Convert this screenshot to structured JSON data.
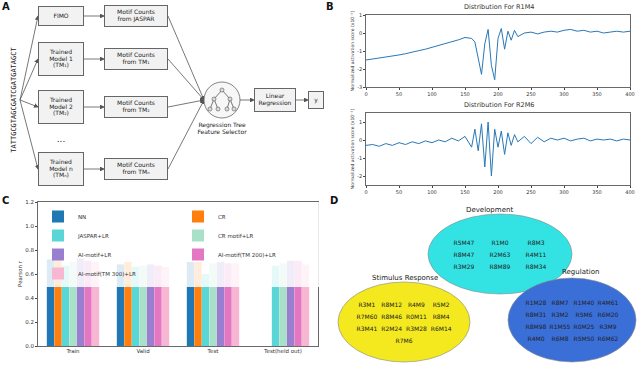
{
  "panel_labels": [
    "A",
    "B",
    "C",
    "D"
  ],
  "pipeline": {
    "sequence": "TATTGCGTAGCGATCGATGATAGCT",
    "inputs": [
      {
        "model": [
          "FIMO"
        ],
        "counts": [
          "Motif Counts",
          "from JASPAR"
        ]
      },
      {
        "model": [
          "Trained",
          "Model 1",
          "(TM₁)"
        ],
        "counts": [
          "Motif Counts",
          "from TM₁"
        ]
      },
      {
        "model": [
          "Trained",
          "Model 2",
          "(TM₂)"
        ],
        "counts": [
          "Motif Counts",
          "from TM₂"
        ]
      },
      {
        "model": [
          "Trained",
          "Model n",
          "(TMₙ)"
        ],
        "counts": [
          "Motif Counts",
          "from TMₙ"
        ]
      }
    ],
    "ellipsis": "...",
    "selector": "Regression Tree Feature Selector",
    "regression": "Linear Regression",
    "output": "y"
  },
  "chart_data": [
    {
      "type": "line",
      "title": "Distribution For R1M4",
      "y_label": "Normalized activation score (x10⁻²)",
      "x": [
        0,
        10,
        20,
        30,
        40,
        50,
        60,
        70,
        80,
        90,
        100,
        110,
        120,
        130,
        140,
        150,
        160,
        165,
        170,
        175,
        180,
        185,
        190,
        195,
        200,
        205,
        210,
        215,
        220,
        225,
        230,
        240,
        250,
        260,
        270,
        280,
        290,
        300,
        310,
        320,
        330,
        340,
        350,
        360,
        370,
        380,
        390,
        400
      ],
      "values": [
        -1.5,
        -1.45,
        -1.4,
        -1.35,
        -1.3,
        -1.22,
        -1.15,
        -1.05,
        -0.98,
        -0.9,
        -0.8,
        -0.7,
        -0.6,
        -0.48,
        -0.38,
        -0.25,
        -0.3,
        -0.5,
        -1.4,
        -2.3,
        -0.6,
        0.2,
        -1.8,
        -2.6,
        -0.3,
        0.25,
        -0.9,
        0.1,
        -0.4,
        0.15,
        -0.2,
        0,
        0.05,
        -0.05,
        0.05,
        0.1,
        0.05,
        0.15,
        0.2,
        0.1,
        0.15,
        0.05,
        0.1,
        0.0,
        0.05,
        0.1,
        0.05,
        0.1
      ],
      "color": "#2a78b5",
      "xlim": [
        0,
        400
      ],
      "xticks": [
        0,
        50,
        100,
        150,
        200,
        250,
        300,
        350,
        400
      ],
      "ylim": [
        -3,
        1
      ],
      "yticks": [
        -3,
        -2,
        -1,
        0,
        1
      ],
      "grid": false
    },
    {
      "type": "line",
      "title": "Distribution For R2M6",
      "y_label": "Normalized activation score (x10⁻²)",
      "x": [
        0,
        10,
        20,
        30,
        40,
        50,
        60,
        70,
        80,
        90,
        100,
        110,
        120,
        130,
        140,
        150,
        160,
        165,
        170,
        175,
        180,
        185,
        190,
        195,
        200,
        205,
        210,
        215,
        220,
        225,
        230,
        240,
        250,
        260,
        270,
        280,
        290,
        300,
        310,
        320,
        330,
        340,
        350,
        360,
        370,
        380,
        390,
        400
      ],
      "values": [
        -0.3,
        -0.25,
        -0.35,
        -0.2,
        -0.3,
        -0.15,
        -0.25,
        -0.1,
        -0.2,
        -0.05,
        -0.15,
        0,
        -0.1,
        0.1,
        -0.05,
        0.2,
        -0.4,
        0.6,
        -0.6,
        0.9,
        -1.5,
        1.0,
        -2.0,
        0.6,
        -0.4,
        0.5,
        -0.8,
        0.4,
        -0.3,
        0.3,
        -0.1,
        0.2,
        -0.2,
        0.15,
        -0.1,
        0.1,
        0,
        0.1,
        -0.05,
        0.05,
        0.1,
        -0.05,
        0.05,
        0,
        0.05,
        -0.05,
        0.05,
        0
      ],
      "color": "#2a78b5",
      "xlim": [
        0,
        400
      ],
      "xticks": [
        0,
        50,
        100,
        150,
        200,
        250,
        300,
        350,
        400
      ],
      "ylim": [
        -2.5,
        1.5
      ],
      "yticks": [
        -2,
        -1,
        0,
        1
      ],
      "grid": false
    },
    {
      "type": "bar",
      "y_label": "Pearson r",
      "categories": [
        "Train",
        "Valid",
        "Test",
        "Test(held out)"
      ],
      "series": [
        {
          "name": "NN",
          "color": "#1f77b4",
          "values": [
            0.72,
            0.68,
            0.7,
            null
          ]
        },
        {
          "name": "CR",
          "color": "#ff7f0e",
          "values": [
            0.72,
            0.7,
            0.7,
            null
          ]
        },
        {
          "name": "JASPAR+LR",
          "color": "#5ad6d6",
          "values": [
            0.67,
            0.66,
            0.6,
            0.67
          ]
        },
        {
          "name": "CR motif+LR",
          "color": "#a8e0c8",
          "values": [
            0.7,
            0.67,
            0.69,
            0.69
          ]
        },
        {
          "name": "AI-motif+LR",
          "color": "#9a7fd1",
          "values": [
            0.73,
            0.68,
            0.7,
            0.71
          ]
        },
        {
          "name": "AI-motif(TM 200)+LR",
          "color": "#e377c2",
          "values": [
            0.71,
            0.67,
            0.69,
            0.71
          ]
        },
        {
          "name": "AI-motif(TM 300)+LR",
          "color": "#f7b6d2",
          "values": [
            0.7,
            0.66,
            0.69,
            0.68
          ]
        }
      ],
      "ylim": [
        0,
        1.2
      ],
      "yticks": [
        {
          "value": 0,
          "label": "0.0"
        },
        0.2,
        0.4,
        0.6,
        0.8,
        {
          "value": 1,
          "label": "1.0"
        },
        1.2
      ],
      "legend": "top left",
      "grid": false
    }
  ],
  "venn": {
    "sets": [
      {
        "label": "Development",
        "color": "#33e3e3",
        "members": [
          "R5M47",
          "R1M0",
          "R8M3",
          "R8M47",
          "R2M63",
          "R4M11",
          "R3M29",
          "R8M89",
          "R8M34"
        ]
      },
      {
        "label": "Stimulus Response",
        "color": "#f4e81e",
        "members": [
          "R3M1",
          "R8M12",
          "R4M9",
          "R5M2",
          "R7M60",
          "R8M46",
          "R0M11",
          "R8M4",
          "R3M41",
          "R2M24",
          "R3M28",
          "R6M14",
          "R7M6"
        ]
      },
      {
        "label": "Regulation",
        "color": "#3b6fd8",
        "members": [
          "R1M28",
          "R8M7",
          "R1M40",
          "R4M61",
          "R8M31",
          "R3M2",
          "R5M6",
          "R6M20",
          "R8M98",
          "R1M55",
          "R0M25",
          "R3M9",
          "R4M0",
          "R6M8",
          "R5M50",
          "R6M62"
        ]
      }
    ]
  }
}
